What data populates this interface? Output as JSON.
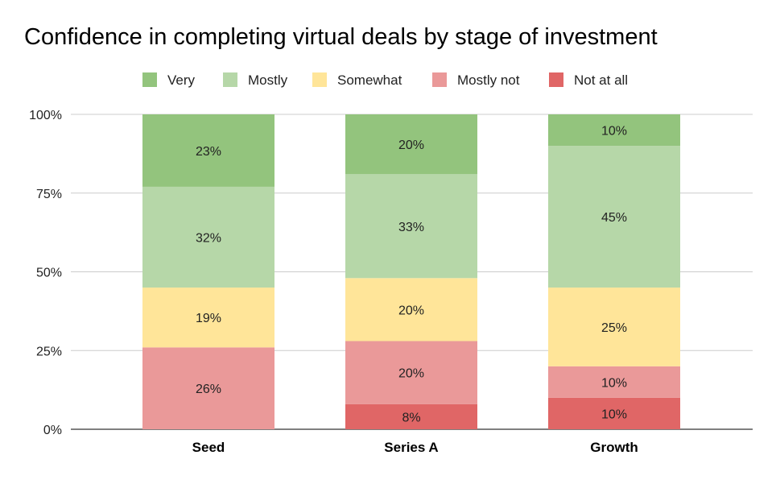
{
  "chart_data": {
    "type": "bar",
    "stacked": true,
    "normalized": true,
    "title": "Confidence in completing virtual deals by stage of investment",
    "xlabel": "",
    "ylabel": "",
    "ylim": [
      0,
      100
    ],
    "yticks": [
      "0%",
      "25%",
      "50%",
      "75%",
      "100%"
    ],
    "grid": true,
    "legend_position": "top",
    "categories": [
      "Seed",
      "Series A",
      "Growth"
    ],
    "series": [
      {
        "name": "Very",
        "color": "#93c47d",
        "values": [
          23,
          20,
          10
        ]
      },
      {
        "name": "Mostly",
        "color": "#b6d7a8",
        "values": [
          32,
          33,
          45
        ]
      },
      {
        "name": "Somewhat",
        "color": "#ffe599",
        "values": [
          19,
          20,
          25
        ]
      },
      {
        "name": "Mostly not",
        "color": "#ea9999",
        "values": [
          26,
          20,
          10
        ]
      },
      {
        "name": "Not at all",
        "color": "#e06666",
        "values": [
          0,
          8,
          10
        ]
      }
    ]
  }
}
